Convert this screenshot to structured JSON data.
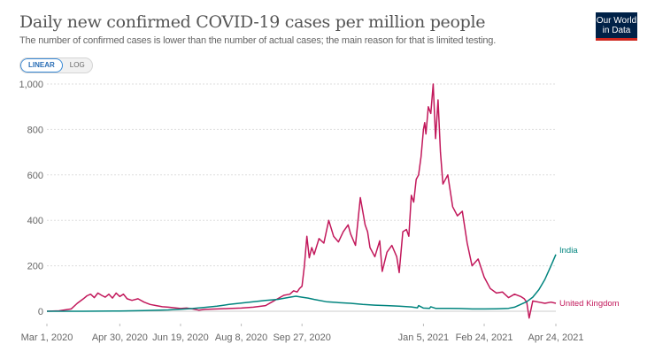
{
  "header": {
    "title": "Daily new confirmed COVID-19 cases per million people",
    "subtitle": "The number of confirmed cases is lower than the number of actual cases; the main reason for that is limited testing.",
    "logo_line1": "Our World",
    "logo_line2": "in Data"
  },
  "controls": {
    "scale_options": [
      "LINEAR",
      "LOG"
    ],
    "selected_scale": "LINEAR"
  },
  "colors": {
    "india": "#00847e",
    "united_kingdom": "#c2185b",
    "grid": "#dddddd",
    "axis_text": "#666666",
    "logo_bg": "#002147",
    "logo_accent": "#ce261e",
    "toggle_active": "#2a6eb5"
  },
  "chart_data": {
    "type": "line",
    "title": "Daily new confirmed COVID-19 cases per million people",
    "xlabel": "",
    "ylabel": "",
    "x_range": [
      "2020-03-01",
      "2021-04-24"
    ],
    "x_unit": "days since 2020-03-01",
    "ylim": [
      0,
      1000
    ],
    "grid": true,
    "y_ticks": [
      0,
      200,
      400,
      600,
      800,
      1000
    ],
    "y_tick_labels": [
      "0",
      "200",
      "400",
      "600",
      "800",
      "1,000"
    ],
    "x_ticks": [
      0,
      60,
      110,
      160,
      210,
      310,
      360,
      419
    ],
    "x_tick_labels": [
      "Mar 1, 2020",
      "Apr 30, 2020",
      "Jun 19, 2020",
      "Aug 8, 2020",
      "Sep 27, 2020",
      "Jan 5, 2021",
      "Feb 24, 2021",
      "Apr 24, 2021"
    ],
    "legend": "inline-right",
    "series": [
      {
        "name": "India",
        "x": [
          0,
          30,
          60,
          80,
          100,
          110,
          120,
          130,
          140,
          150,
          160,
          170,
          180,
          190,
          200,
          205,
          210,
          215,
          220,
          230,
          240,
          250,
          260,
          270,
          280,
          290,
          300,
          305,
          306,
          310,
          315,
          316,
          320,
          330,
          340,
          350,
          360,
          370,
          380,
          385,
          390,
          395,
          400,
          405,
          410,
          415,
          419
        ],
        "values": [
          0,
          0,
          1,
          3,
          6,
          9,
          12,
          17,
          22,
          30,
          36,
          42,
          48,
          52,
          62,
          66,
          62,
          58,
          52,
          42,
          38,
          35,
          30,
          27,
          25,
          22,
          19,
          15,
          25,
          14,
          13,
          20,
          13,
          13,
          12,
          10,
          10,
          11,
          13,
          18,
          30,
          42,
          62,
          95,
          140,
          200,
          250
        ]
      },
      {
        "name": "United Kingdom",
        "x": [
          0,
          10,
          20,
          25,
          30,
          33,
          36,
          39,
          42,
          45,
          48,
          51,
          54,
          57,
          60,
          63,
          66,
          70,
          75,
          80,
          85,
          90,
          95,
          100,
          105,
          110,
          115,
          120,
          125,
          130,
          140,
          150,
          160,
          170,
          180,
          185,
          190,
          195,
          200,
          203,
          206,
          208,
          210,
          212,
          214,
          216,
          218,
          220,
          224,
          228,
          232,
          236,
          240,
          244,
          248,
          250,
          254,
          258,
          262,
          264,
          266,
          270,
          274,
          276,
          280,
          284,
          288,
          290,
          293,
          296,
          298,
          300,
          302,
          304,
          306,
          308,
          310,
          311,
          312,
          314,
          316,
          318,
          320,
          322,
          324,
          326,
          330,
          334,
          338,
          342,
          346,
          350,
          355,
          360,
          365,
          370,
          375,
          380,
          385,
          390,
          393,
          395,
          397,
          400,
          405,
          410,
          415,
          419
        ],
        "values": [
          0,
          2,
          10,
          35,
          55,
          68,
          75,
          60,
          80,
          70,
          62,
          75,
          58,
          80,
          65,
          75,
          55,
          48,
          55,
          40,
          30,
          25,
          20,
          18,
          15,
          12,
          14,
          10,
          5,
          8,
          10,
          12,
          14,
          18,
          25,
          40,
          55,
          70,
          75,
          90,
          85,
          100,
          110,
          200,
          330,
          235,
          280,
          250,
          320,
          300,
          400,
          330,
          305,
          350,
          380,
          340,
          290,
          500,
          380,
          350,
          280,
          240,
          310,
          175,
          260,
          290,
          240,
          170,
          350,
          360,
          330,
          510,
          480,
          580,
          600,
          680,
          800,
          830,
          780,
          900,
          870,
          1000,
          760,
          930,
          700,
          560,
          600,
          460,
          420,
          440,
          300,
          200,
          230,
          150,
          100,
          80,
          85,
          60,
          75,
          65,
          55,
          40,
          -30,
          45,
          40,
          35,
          40,
          35
        ]
      }
    ]
  }
}
